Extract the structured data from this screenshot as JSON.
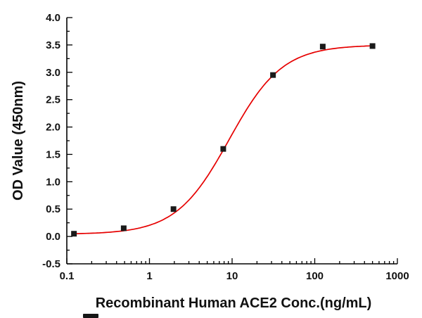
{
  "chart_data": {
    "type": "scatter",
    "title": "",
    "xlabel": "Recombinant Human ACE2 Conc.(ng/mL)",
    "ylabel": "OD Value (450nm)",
    "x_scale": "log",
    "xlim": [
      0.1,
      1000
    ],
    "ylim": [
      -0.5,
      4.0
    ],
    "x_major_ticks": [
      0.1,
      1,
      10,
      100,
      1000
    ],
    "x_tick_labels": [
      "0.1",
      "1",
      "10",
      "100",
      "1000"
    ],
    "y_major_ticks": [
      -0.5,
      0.0,
      0.5,
      1.0,
      1.5,
      2.0,
      2.5,
      3.0,
      3.5,
      4.0
    ],
    "y_tick_labels": [
      "-0.5",
      "0.0",
      "0.5",
      "1.0",
      "1.5",
      "2.0",
      "2.5",
      "3.0",
      "3.5",
      "4.0"
    ],
    "grid": false,
    "legend": null,
    "points": {
      "x": [
        0.122,
        0.488,
        1.953,
        7.813,
        31.25,
        125,
        500
      ],
      "y": [
        0.05,
        0.15,
        0.5,
        1.6,
        2.95,
        3.47,
        3.48
      ]
    },
    "marker": {
      "shape": "square",
      "color": "#1a1a1a",
      "size": 8
    },
    "fit_curve": {
      "model": "4PL",
      "bottom": 0.04,
      "top": 3.5,
      "ec50": 9.2,
      "hill": 1.35,
      "color": "#e60000",
      "width": 1.7
    }
  }
}
